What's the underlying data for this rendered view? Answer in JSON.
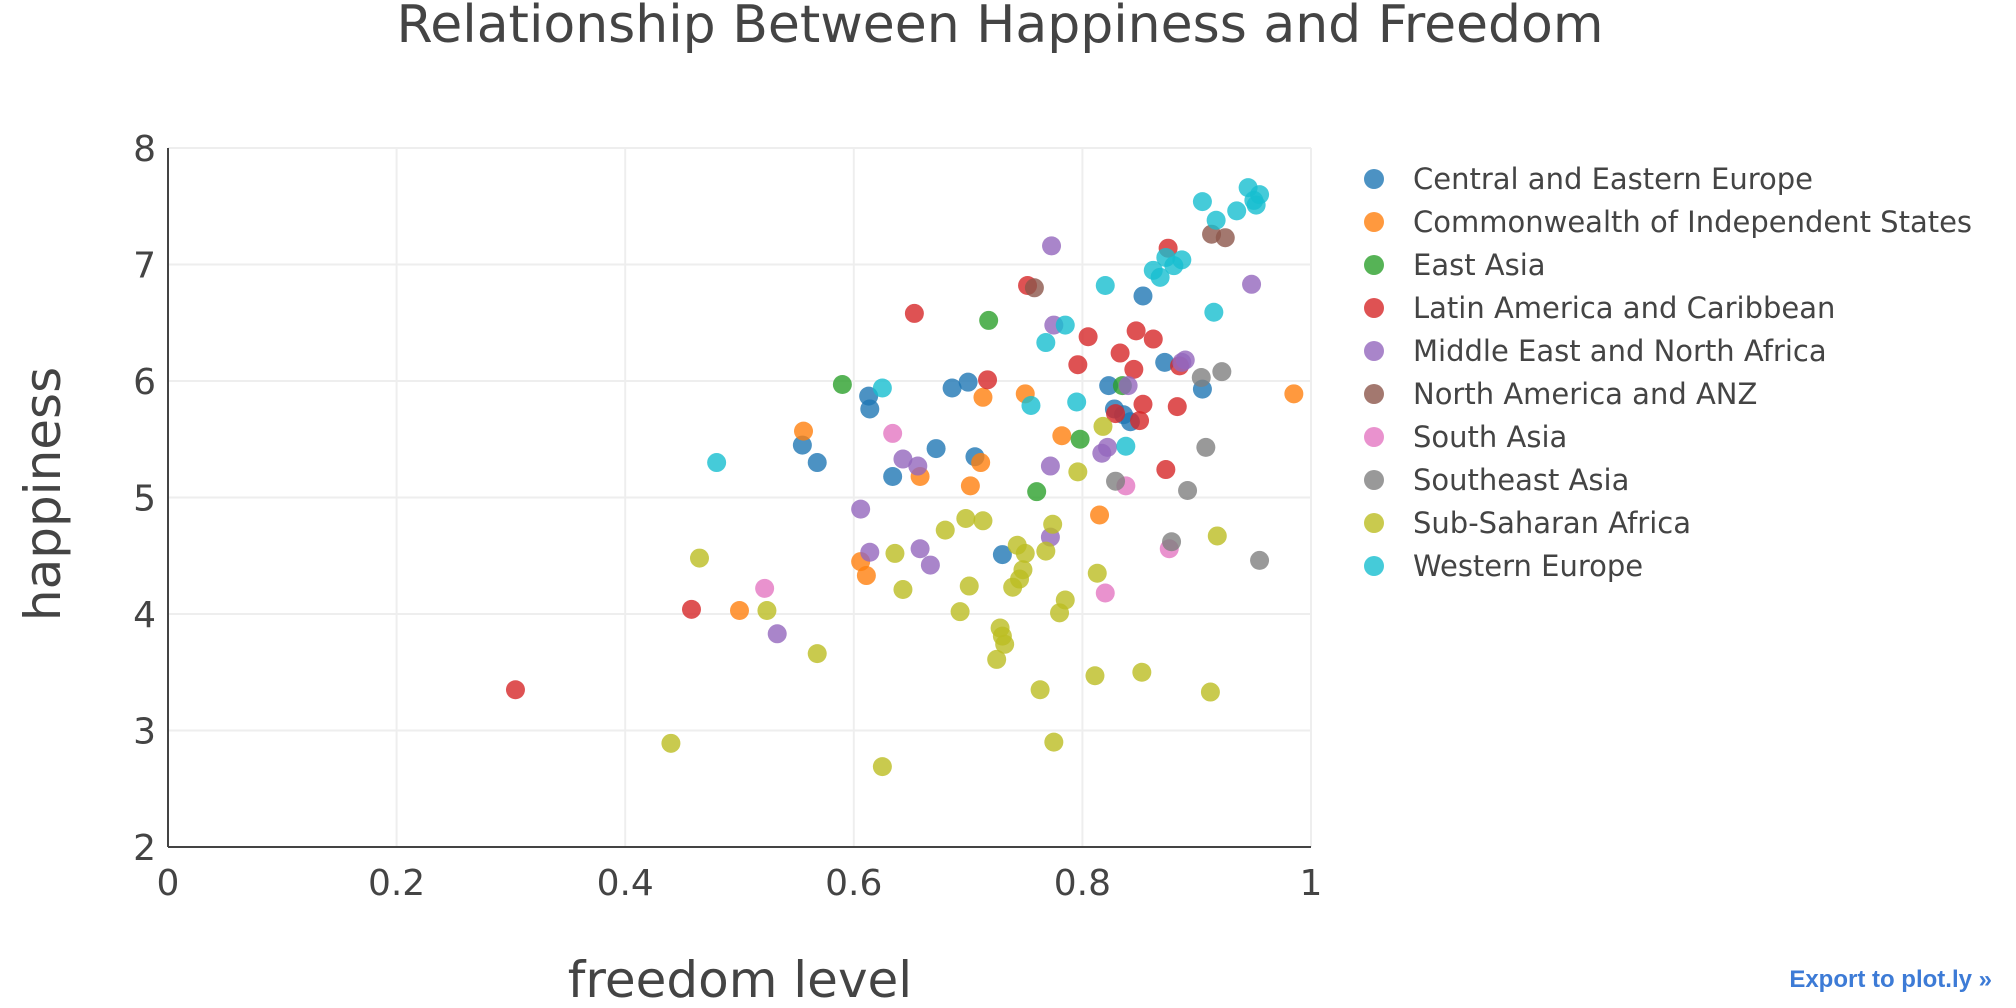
{
  "export_label": "Export to plot.ly »",
  "chart_data": {
    "type": "scatter",
    "title": "Relationship Between Happiness and Freedom",
    "xlabel": "freedom level",
    "ylabel": "happiness",
    "xlim": [
      0,
      1
    ],
    "ylim": [
      2,
      8
    ],
    "x_ticks": [
      "0",
      "0.2",
      "0.4",
      "0.6",
      "0.8",
      "1"
    ],
    "y_ticks": [
      "2",
      "3",
      "4",
      "5",
      "6",
      "7",
      "8"
    ],
    "grid": true,
    "legend_position": "right",
    "series": [
      {
        "name": "Central and Eastern Europe",
        "color": "#1f77b4",
        "points": [
          [
            0.555,
            5.45
          ],
          [
            0.568,
            5.3
          ],
          [
            0.613,
            5.87
          ],
          [
            0.614,
            5.76
          ],
          [
            0.634,
            5.18
          ],
          [
            0.672,
            5.42
          ],
          [
            0.686,
            5.94
          ],
          [
            0.7,
            5.99
          ],
          [
            0.706,
            5.35
          ],
          [
            0.73,
            4.51
          ],
          [
            0.823,
            5.96
          ],
          [
            0.828,
            5.76
          ],
          [
            0.836,
            5.71
          ],
          [
            0.842,
            5.65
          ],
          [
            0.853,
            6.73
          ],
          [
            0.872,
            6.16
          ],
          [
            0.905,
            5.93
          ]
        ]
      },
      {
        "name": "Commonwealth of Independent States",
        "color": "#ff7f0e",
        "points": [
          [
            0.5,
            4.03
          ],
          [
            0.556,
            5.57
          ],
          [
            0.606,
            4.45
          ],
          [
            0.611,
            4.33
          ],
          [
            0.658,
            5.18
          ],
          [
            0.702,
            5.1
          ],
          [
            0.711,
            5.3
          ],
          [
            0.713,
            5.86
          ],
          [
            0.75,
            5.89
          ],
          [
            0.782,
            5.53
          ],
          [
            0.815,
            4.85
          ],
          [
            0.985,
            5.89
          ]
        ]
      },
      {
        "name": "East Asia",
        "color": "#2ca02c",
        "points": [
          [
            0.59,
            5.97
          ],
          [
            0.718,
            6.52
          ],
          [
            0.76,
            5.05
          ],
          [
            0.798,
            5.5
          ],
          [
            0.835,
            5.96
          ]
        ]
      },
      {
        "name": "Latin America and Caribbean",
        "color": "#d62728",
        "points": [
          [
            0.304,
            3.35
          ],
          [
            0.458,
            4.04
          ],
          [
            0.653,
            6.58
          ],
          [
            0.717,
            6.01
          ],
          [
            0.752,
            6.82
          ],
          [
            0.796,
            6.14
          ],
          [
            0.805,
            6.38
          ],
          [
            0.829,
            5.72
          ],
          [
            0.833,
            6.24
          ],
          [
            0.845,
            6.1
          ],
          [
            0.847,
            6.43
          ],
          [
            0.85,
            5.66
          ],
          [
            0.853,
            5.8
          ],
          [
            0.862,
            6.36
          ],
          [
            0.873,
            5.24
          ],
          [
            0.875,
            7.14
          ],
          [
            0.883,
            5.78
          ],
          [
            0.885,
            6.13
          ]
        ]
      },
      {
        "name": "Middle East and North Africa",
        "color": "#9467bd",
        "points": [
          [
            0.533,
            3.83
          ],
          [
            0.606,
            4.9
          ],
          [
            0.614,
            4.53
          ],
          [
            0.643,
            5.33
          ],
          [
            0.656,
            5.27
          ],
          [
            0.658,
            4.56
          ],
          [
            0.667,
            4.42
          ],
          [
            0.772,
            5.27
          ],
          [
            0.772,
            4.66
          ],
          [
            0.773,
            7.16
          ],
          [
            0.775,
            6.48
          ],
          [
            0.817,
            5.38
          ],
          [
            0.822,
            5.43
          ],
          [
            0.84,
            5.96
          ],
          [
            0.887,
            6.16
          ],
          [
            0.89,
            6.18
          ],
          [
            0.948,
            6.83
          ]
        ]
      },
      {
        "name": "North America and ANZ",
        "color": "#8c564b",
        "points": [
          [
            0.758,
            6.8
          ],
          [
            0.913,
            7.26
          ],
          [
            0.925,
            7.23
          ]
        ]
      },
      {
        "name": "South Asia",
        "color": "#e377c2",
        "points": [
          [
            0.522,
            4.22
          ],
          [
            0.634,
            5.55
          ],
          [
            0.82,
            4.18
          ],
          [
            0.838,
            5.1
          ],
          [
            0.876,
            4.56
          ]
        ]
      },
      {
        "name": "Southeast Asia",
        "color": "#7f7f7f",
        "points": [
          [
            0.829,
            5.14
          ],
          [
            0.878,
            4.62
          ],
          [
            0.892,
            5.06
          ],
          [
            0.904,
            6.03
          ],
          [
            0.908,
            5.43
          ],
          [
            0.922,
            6.08
          ],
          [
            0.955,
            4.46
          ]
        ]
      },
      {
        "name": "Sub-Saharan Africa",
        "color": "#bcbd22",
        "points": [
          [
            0.44,
            2.89
          ],
          [
            0.465,
            4.48
          ],
          [
            0.524,
            4.03
          ],
          [
            0.568,
            3.66
          ],
          [
            0.625,
            2.69
          ],
          [
            0.636,
            4.52
          ],
          [
            0.643,
            4.21
          ],
          [
            0.68,
            4.72
          ],
          [
            0.693,
            4.02
          ],
          [
            0.698,
            4.82
          ],
          [
            0.701,
            4.24
          ],
          [
            0.713,
            4.8
          ],
          [
            0.725,
            3.61
          ],
          [
            0.728,
            3.88
          ],
          [
            0.73,
            3.81
          ],
          [
            0.732,
            3.74
          ],
          [
            0.739,
            4.23
          ],
          [
            0.743,
            4.59
          ],
          [
            0.745,
            4.3
          ],
          [
            0.748,
            4.38
          ],
          [
            0.75,
            4.52
          ],
          [
            0.763,
            3.35
          ],
          [
            0.768,
            4.54
          ],
          [
            0.774,
            4.77
          ],
          [
            0.775,
            2.9
          ],
          [
            0.78,
            4.01
          ],
          [
            0.785,
            4.12
          ],
          [
            0.796,
            5.22
          ],
          [
            0.811,
            3.47
          ],
          [
            0.813,
            4.35
          ],
          [
            0.818,
            5.61
          ],
          [
            0.852,
            3.5
          ],
          [
            0.912,
            3.33
          ],
          [
            0.918,
            4.67
          ]
        ]
      },
      {
        "name": "Western Europe",
        "color": "#17becf",
        "points": [
          [
            0.48,
            5.3
          ],
          [
            0.625,
            5.94
          ],
          [
            0.755,
            5.79
          ],
          [
            0.768,
            6.33
          ],
          [
            0.785,
            6.48
          ],
          [
            0.795,
            5.82
          ],
          [
            0.82,
            6.82
          ],
          [
            0.838,
            5.44
          ],
          [
            0.862,
            6.95
          ],
          [
            0.868,
            6.89
          ],
          [
            0.873,
            7.06
          ],
          [
            0.88,
            6.99
          ],
          [
            0.887,
            7.04
          ],
          [
            0.905,
            7.54
          ],
          [
            0.915,
            6.59
          ],
          [
            0.917,
            7.38
          ],
          [
            0.935,
            7.46
          ],
          [
            0.945,
            7.66
          ],
          [
            0.95,
            7.55
          ],
          [
            0.952,
            7.51
          ],
          [
            0.955,
            7.6
          ]
        ]
      }
    ]
  }
}
